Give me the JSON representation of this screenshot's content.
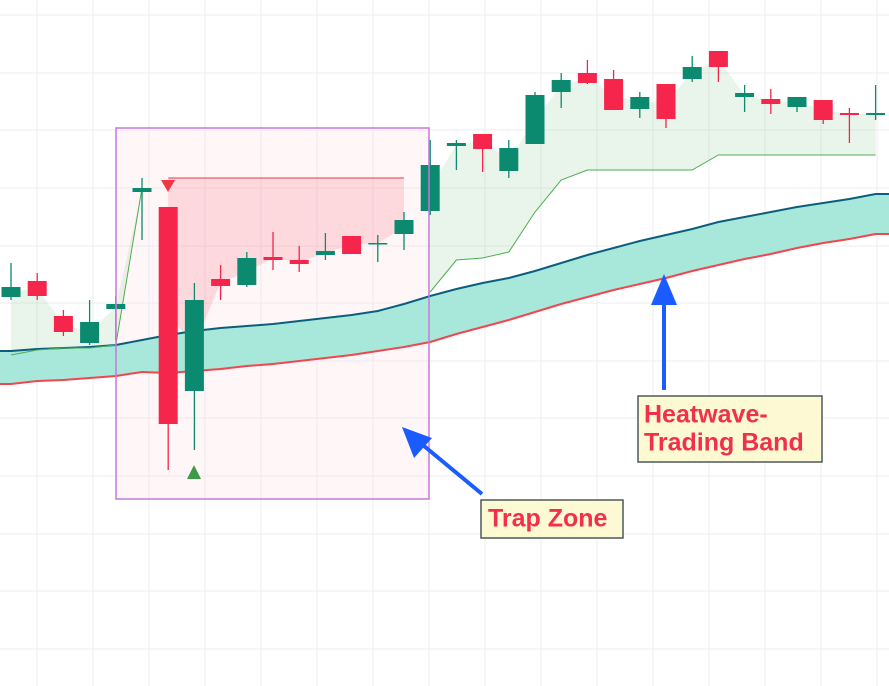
{
  "chart_data": {
    "type": "candlestick",
    "categories": [
      null,
      null,
      null,
      null,
      null,
      null,
      null,
      null,
      null,
      null,
      null,
      null,
      null,
      null,
      null,
      null,
      null,
      null,
      null,
      null,
      null,
      null,
      null,
      null,
      null,
      null,
      null,
      null,
      null,
      null,
      null,
      null,
      null,
      null
    ],
    "open": [
      403,
      419,
      384,
      357,
      391,
      508,
      493,
      309,
      421,
      415,
      443,
      440,
      445,
      464,
      456,
      466,
      489,
      554,
      566,
      529,
      556,
      608,
      627,
      621,
      591,
      616,
      621,
      649,
      603,
      601,
      593,
      600,
      587,
      585
    ],
    "high": [
      437,
      427,
      390,
      400,
      404,
      522,
      493,
      417,
      435,
      448,
      468,
      454,
      467,
      464,
      465,
      488,
      560,
      560,
      566,
      560,
      608,
      627,
      640,
      630,
      608,
      616,
      644,
      649,
      615,
      611,
      603,
      600,
      592,
      615
    ],
    "low": [
      400,
      400,
      364,
      355,
      360,
      460,
      230,
      250,
      400,
      413,
      430,
      428,
      440,
      446,
      438,
      450,
      485,
      530,
      528,
      522,
      556,
      592,
      616,
      590,
      582,
      572,
      618,
      618,
      588,
      586,
      588,
      576,
      557,
      580
    ],
    "close": [
      413,
      404,
      368,
      378,
      396,
      512,
      276,
      400,
      414,
      442,
      440,
      436,
      449,
      446,
      457,
      480,
      535,
      557,
      551,
      552,
      605,
      620,
      617,
      590,
      603,
      581,
      633,
      633,
      607,
      596,
      603,
      580,
      585,
      587
    ],
    "up_color": "#0b8a6f",
    "down_color": "#f5254b",
    "band_upper": {
      "color": "#0b5f7d",
      "values": [
        349,
        351,
        352,
        353,
        355,
        360,
        365,
        369,
        372,
        374,
        376,
        379,
        382,
        385,
        389,
        396,
        404,
        411,
        417,
        422,
        429,
        437,
        445,
        452,
        459,
        465,
        471,
        478,
        483,
        488,
        493,
        497,
        501,
        506
      ]
    },
    "band_lower": {
      "color": "#f0474f",
      "values": [
        316,
        319,
        320,
        322,
        324,
        328,
        327,
        329,
        331,
        334,
        336,
        339,
        342,
        345,
        349,
        353,
        358,
        366,
        373,
        380,
        388,
        396,
        403,
        410,
        416,
        422,
        429,
        435,
        441,
        446,
        452,
        457,
        461,
        466
      ]
    },
    "band_fill": "#a8e8da",
    "trail_up": {
      "color": "#4caf50",
      "values": [
        345,
        350,
        352,
        352,
        355,
        512,
        null,
        null,
        null,
        null,
        null,
        null,
        null,
        null,
        null,
        null,
        408,
        440,
        442,
        448,
        488,
        520,
        530,
        530,
        530,
        530,
        530,
        545,
        545,
        545,
        545,
        545,
        545,
        545
      ]
    },
    "trail_down": {
      "color": "#f23645",
      "values": [
        null,
        null,
        null,
        null,
        null,
        null,
        522,
        522,
        522,
        522,
        522,
        522,
        522,
        522,
        522,
        522,
        null,
        null,
        null,
        null,
        null,
        null,
        null,
        null,
        null,
        null,
        null,
        null,
        null,
        null,
        null,
        null,
        null,
        null
      ]
    },
    "ylim": [
      14,
      700
    ],
    "yticks": [
      51,
      109,
      166,
      224,
      282,
      339,
      397,
      454,
      512,
      570,
      627,
      685
    ],
    "grid": true,
    "annotations": [
      {
        "lines": [
          "Trap Zone"
        ]
      },
      {
        "lines": [
          "Heatwave-",
          "Trading Band"
        ]
      }
    ]
  }
}
